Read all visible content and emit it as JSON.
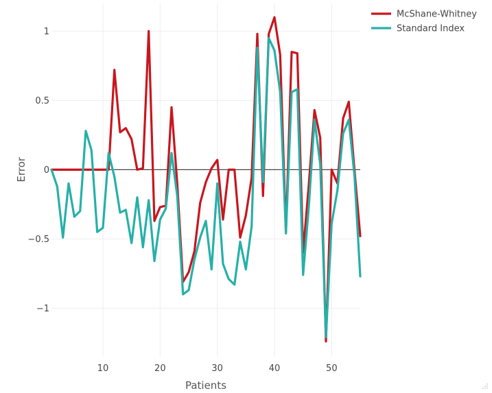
{
  "chart_data": {
    "type": "line",
    "xlabel": "Patients",
    "ylabel": "Error",
    "xlim": [
      1,
      55
    ],
    "ylim": [
      -1.35,
      1.2
    ],
    "xticks": [
      10,
      20,
      30,
      40,
      50
    ],
    "xtick_labels": [
      "10",
      "20",
      "30",
      "40",
      "50"
    ],
    "yticks": [
      1,
      0.5,
      0,
      -0.5,
      -1
    ],
    "ytick_labels": [
      "1",
      "0.5",
      "0",
      "−0.5",
      "−1"
    ],
    "grid": true,
    "zero_line": true,
    "legend_position": "top-right",
    "x": [
      1,
      2,
      3,
      4,
      5,
      6,
      7,
      8,
      9,
      10,
      11,
      12,
      13,
      14,
      15,
      16,
      17,
      18,
      19,
      20,
      21,
      22,
      23,
      24,
      25,
      26,
      27,
      28,
      29,
      30,
      31,
      32,
      33,
      34,
      35,
      36,
      37,
      38,
      39,
      40,
      41,
      42,
      43,
      44,
      45,
      46,
      47,
      48,
      49,
      50,
      51,
      52,
      53,
      54,
      55
    ],
    "series": [
      {
        "name": "McShane-Whitney",
        "color": "#c8161e",
        "values": [
          0,
          0,
          0,
          0,
          0,
          0,
          0,
          0,
          0,
          0,
          0,
          0.72,
          0.27,
          0.3,
          0.22,
          0,
          0.01,
          1.0,
          -0.37,
          -0.27,
          -0.26,
          0.45,
          -0.1,
          -0.81,
          -0.74,
          -0.59,
          -0.24,
          -0.09,
          0.01,
          0.07,
          -0.36,
          0,
          0,
          -0.49,
          -0.33,
          -0.06,
          0.98,
          -0.19,
          0.98,
          1.1,
          0.83,
          -0.45,
          0.85,
          0.84,
          -0.6,
          -0.11,
          0.43,
          0.23,
          -1.24,
          0,
          -0.1,
          0.37,
          0.49,
          -0.01,
          -0.48
        ]
      },
      {
        "name": "Standard Index",
        "color": "#26b0a8",
        "values": [
          0,
          -0.12,
          -0.49,
          -0.1,
          -0.34,
          -0.3,
          0.28,
          0.14,
          -0.45,
          -0.42,
          0.12,
          -0.05,
          -0.31,
          -0.29,
          -0.53,
          -0.2,
          -0.56,
          -0.22,
          -0.66,
          -0.36,
          -0.28,
          0.12,
          -0.19,
          -0.9,
          -0.87,
          -0.65,
          -0.49,
          -0.37,
          -0.72,
          -0.1,
          -0.68,
          -0.79,
          -0.83,
          -0.52,
          -0.72,
          -0.41,
          0.88,
          -0.09,
          0.95,
          0.86,
          0.56,
          -0.46,
          0.56,
          0.58,
          -0.76,
          -0.27,
          0.36,
          0.04,
          -1.21,
          -0.39,
          -0.15,
          0.26,
          0.36,
          -0.05,
          -0.77
        ]
      }
    ]
  }
}
